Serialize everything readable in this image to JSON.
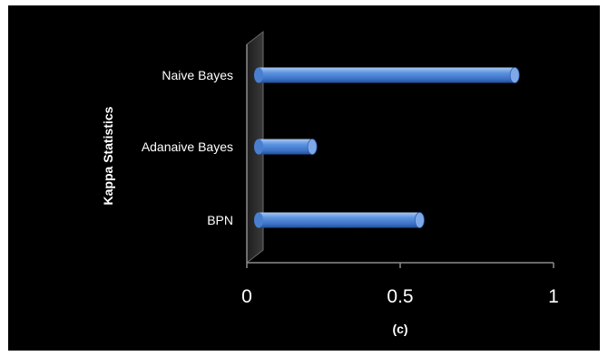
{
  "chart_data": {
    "type": "bar",
    "orientation": "horizontal",
    "style": "3d-cylinder",
    "categories": [
      "Naive Bayes",
      "Adanaive Bayes",
      "BPN"
    ],
    "values": [
      0.82,
      0.16,
      0.51
    ],
    "xlabel": "(c)",
    "ylabel": "Kappa Statistics",
    "xlim": [
      0,
      1
    ],
    "xticks": [
      "0",
      "0.5",
      "1"
    ],
    "grid": false,
    "legend": "none",
    "colors": {
      "background": "#000000",
      "bar": "#4f86d6",
      "bar_highlight": "#a9c8f2",
      "bar_shadow": "#1f4f9a",
      "axis": "#8c8c8c",
      "text": "#ffffff"
    }
  }
}
